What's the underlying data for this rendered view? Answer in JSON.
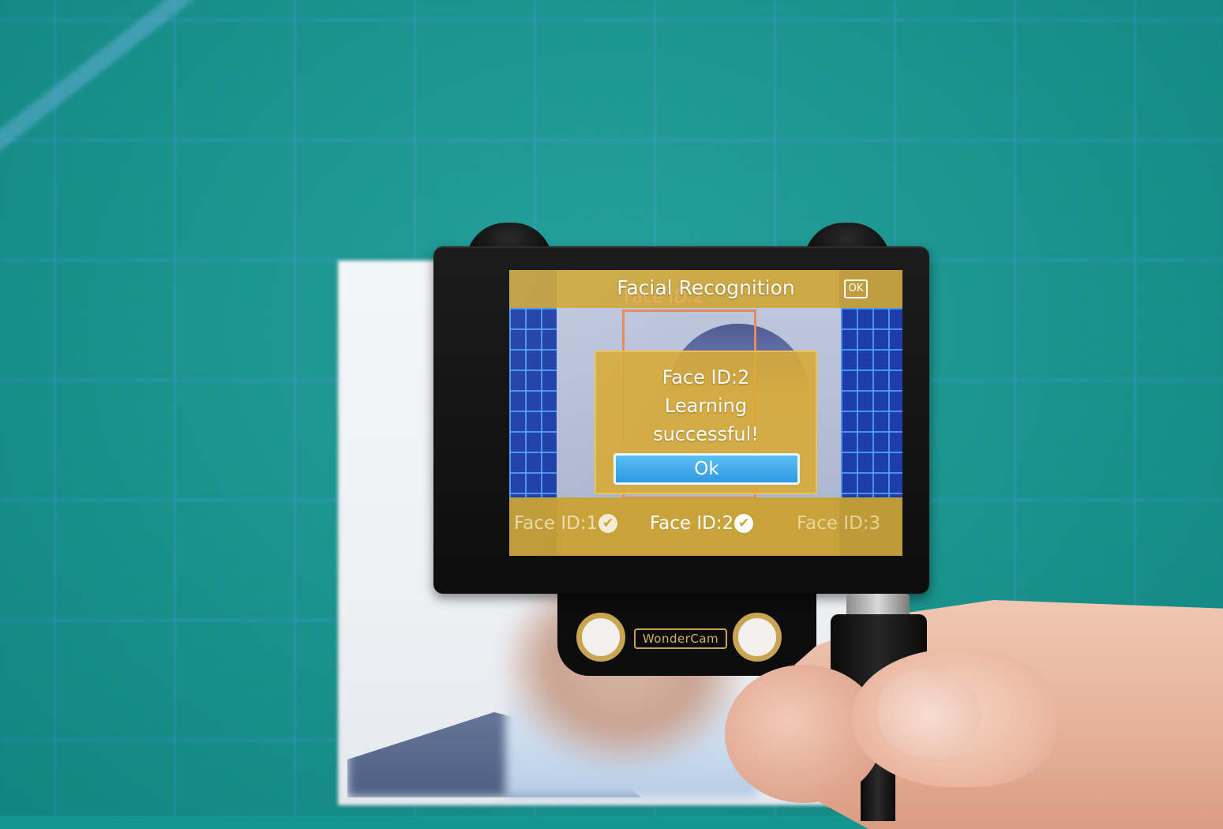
{
  "screen": {
    "title": "Facial Recognition",
    "ok_badge": "OK",
    "face_box_label": "Face ID:2",
    "dialog": {
      "line1": "Face ID:2",
      "line2": "Learning",
      "line3": "successful!",
      "ok_button": "Ok"
    },
    "faces": [
      {
        "label": "Face ID:1",
        "learned": true,
        "check": "✔"
      },
      {
        "label": "Face ID:2",
        "learned": true,
        "check": "✔"
      },
      {
        "label": "Face ID:3",
        "learned": false
      }
    ]
  },
  "device": {
    "brand_label": "WonderCam"
  },
  "colors": {
    "ui_gold": "#c8a33c",
    "button_blue": "#2f98e1",
    "grid_blue": "#1d3ea8",
    "mat_teal": "#139a93",
    "face_box_orange": "#e88a55"
  }
}
